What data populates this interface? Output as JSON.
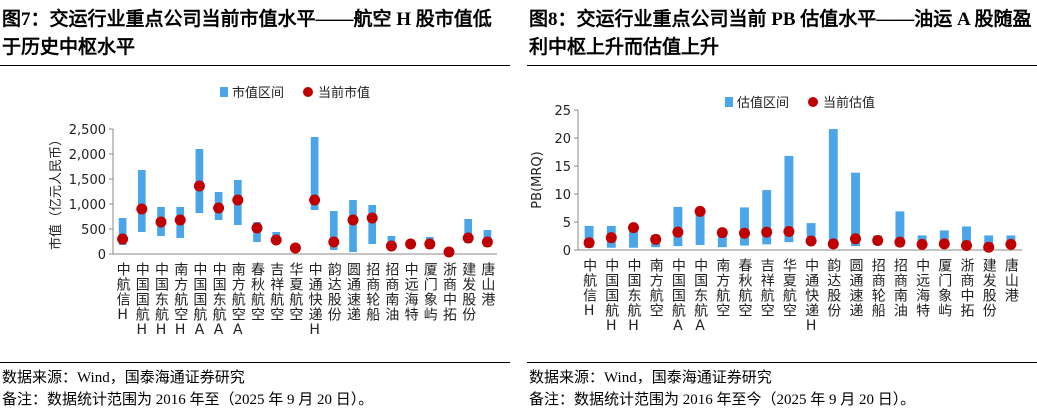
{
  "chart_data": [
    {
      "type": "range",
      "title": "图7：交运行业重点公司当前市值水平——航空 H 股市值低于历史中枢水平",
      "y_label": "市值（亿元人民币）",
      "categories": [
        "中航信H",
        "中国国航H",
        "中国东航H",
        "南方航空H",
        "中国国航A",
        "中国东航A",
        "南方航空A",
        "春秋航空",
        "吉祥航空",
        "华夏航空",
        "中通快递H",
        "韵达股份",
        "圆通速递",
        "招商轮船",
        "招商南油",
        "中远海特",
        "厦门象屿",
        "浙商中拓",
        "建发股份",
        "唐山港"
      ],
      "series": [
        {
          "name": "市值区间",
          "color": "#4aa6e8",
          "low": [
            180,
            440,
            360,
            320,
            820,
            680,
            580,
            240,
            220,
            100,
            880,
            80,
            40,
            200,
            80,
            120,
            100,
            20,
            220,
            140
          ],
          "high": [
            720,
            1680,
            940,
            940,
            2100,
            1240,
            1480,
            640,
            440,
            140,
            2340,
            860,
            1080,
            980,
            360,
            280,
            340,
            120,
            700,
            480
          ]
        },
        {
          "name": "当前市值",
          "color": "#c00000",
          "values": [
            300,
            900,
            640,
            680,
            1360,
            920,
            1080,
            520,
            280,
            120,
            1080,
            240,
            680,
            720,
            160,
            200,
            200,
            40,
            320,
            240
          ]
        }
      ],
      "ylim": [
        0,
        2500
      ],
      "yticks": [
        0,
        500,
        {
          "value": 1000,
          "label": "1,000"
        },
        {
          "value": 1500,
          "label": "1,500"
        },
        {
          "value": 2000,
          "label": "2,000"
        },
        {
          "value": 2500,
          "label": "2,500"
        }
      ],
      "source": "数据来源：Wind，国泰海通证券研究",
      "note": "备注：数据统计范围为 2016 年至（2025 年 9 月 20 日）。"
    },
    {
      "type": "range",
      "title": "图8：交运行业重点公司当前 PB 估值水平——油运 A 股随盈利中枢上升而估值上升",
      "y_label": "PB(MRQ)",
      "categories": [
        "中航信H",
        "中国国航H",
        "中国东航H",
        "南方航空",
        "中国国航A",
        "中国东航A",
        "南方航空",
        "春秋航空",
        "吉祥航空",
        "华夏航空",
        "中通快递H",
        "韵达股份",
        "圆通速递",
        "招商轮船",
        "招商南油",
        "中远海特",
        "厦门象屿",
        "浙商中拓",
        "建发股份",
        "唐山港"
      ],
      "series": [
        {
          "name": "估值区间",
          "color": "#4aa6e8",
          "low": [
            0.4,
            0.4,
            0.4,
            0.5,
            0.7,
            0.9,
            0.5,
            0.8,
            1.0,
            1.4,
            1.2,
            0.3,
            0.7,
            0.9,
            0.6,
            0.5,
            1.0,
            0.4,
            0.3,
            0.5
          ],
          "high": [
            4.3,
            4.3,
            4.6,
            2.7,
            7.7,
            7.5,
            3.3,
            7.6,
            10.7,
            16.8,
            4.8,
            21.6,
            13.8,
            2.6,
            6.9,
            2.6,
            3.5,
            4.2,
            2.6,
            2.6
          ]
        },
        {
          "name": "当前估值",
          "color": "#c00000",
          "values": [
            1.3,
            2.2,
            4.0,
            1.9,
            3.2,
            6.9,
            3.1,
            3.0,
            3.2,
            3.3,
            1.6,
            1.1,
            2.0,
            1.7,
            1.4,
            1.0,
            1.1,
            0.8,
            0.5,
            1.0
          ]
        }
      ],
      "ylim": [
        0,
        25
      ],
      "yticks": [
        0,
        5,
        10,
        15,
        20,
        25
      ],
      "source": "数据来源：Wind，国泰海通证券研究",
      "note": "备注：数据统计范围为 2016 年至今（2025 年 9 月 20 日）。"
    }
  ]
}
